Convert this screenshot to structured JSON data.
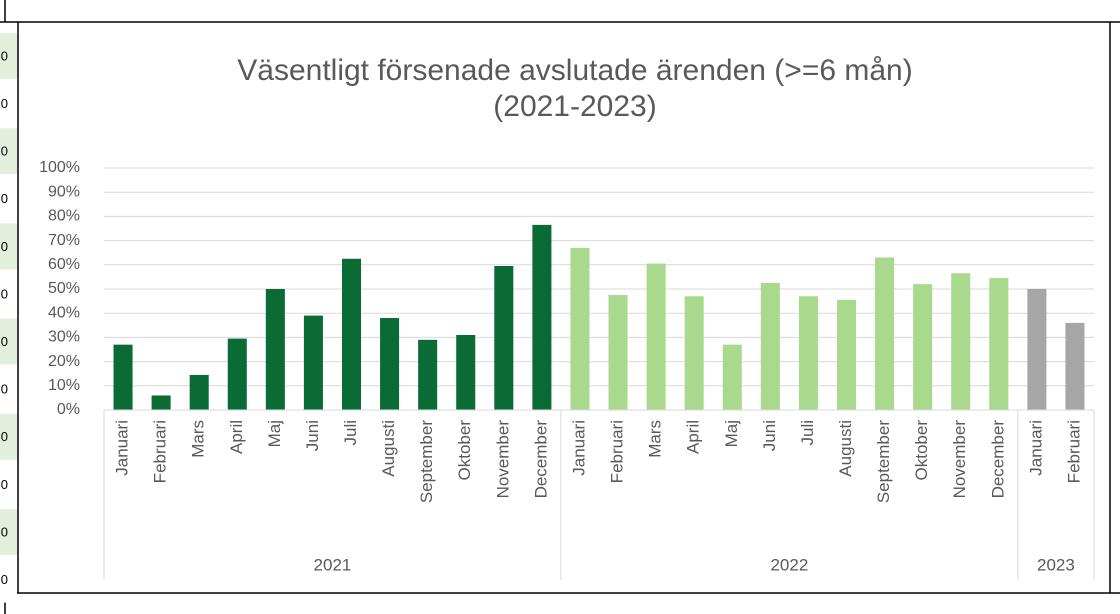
{
  "sheet_cells": [
    "0",
    "0",
    "0",
    "0",
    "0",
    "0",
    "0",
    "0",
    "0",
    "0",
    "0",
    "0"
  ],
  "chart_data": {
    "type": "bar",
    "title": [
      "Väsentligt försenade avslutade ärenden (>=6 mån)",
      "(2021-2023)"
    ],
    "series": [
      {
        "name": "2021",
        "color": "#0b6b35",
        "categories": [
          "Januari",
          "Februari",
          "Mars",
          "April",
          "Maj",
          "Juni",
          "Juli",
          "Augusti",
          "September",
          "Oktober",
          "November",
          "December"
        ],
        "values": [
          27,
          6,
          14.5,
          29.5,
          50,
          39,
          62.5,
          38,
          29,
          31,
          59.5,
          76.5
        ]
      },
      {
        "name": "2022",
        "color": "#a9d98c",
        "categories": [
          "Januari",
          "Februari",
          "Mars",
          "April",
          "Maj",
          "Juni",
          "Juli",
          "Augusti",
          "September",
          "Oktober",
          "November",
          "December"
        ],
        "values": [
          67,
          47.5,
          60.5,
          47,
          27,
          52.5,
          47,
          45.5,
          63,
          52,
          56.5,
          54.5
        ]
      },
      {
        "name": "2023",
        "color": "#a6a6a6",
        "categories": [
          "Januari",
          "Februari"
        ],
        "values": [
          50,
          36
        ]
      }
    ],
    "ylim": [
      0,
      100
    ],
    "yticks": [
      {
        "value": 0,
        "label": "0%"
      },
      {
        "value": 10,
        "label": "10%"
      },
      {
        "value": 20,
        "label": "20%"
      },
      {
        "value": 30,
        "label": "30%"
      },
      {
        "value": 40,
        "label": "40%"
      },
      {
        "value": 50,
        "label": "50%"
      },
      {
        "value": 60,
        "label": "60%"
      },
      {
        "value": 70,
        "label": "70%"
      },
      {
        "value": 80,
        "label": "80%"
      },
      {
        "value": 90,
        "label": "90%"
      },
      {
        "value": 100,
        "label": "100%"
      }
    ],
    "grid": true
  }
}
